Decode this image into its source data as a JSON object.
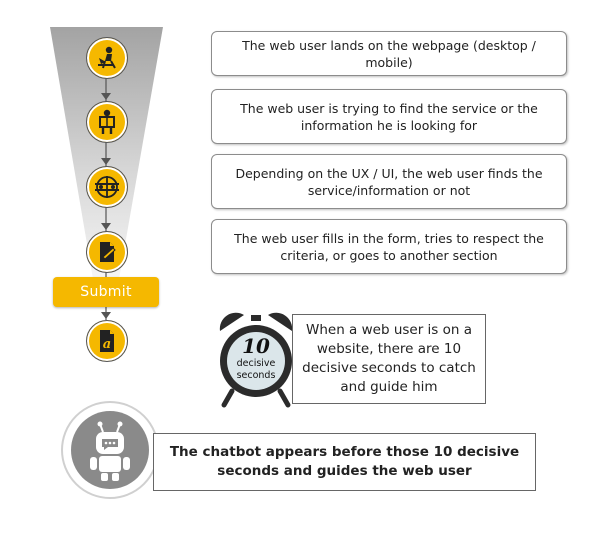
{
  "steps": [
    {
      "text": "The web user lands on the webpage (desktop / mobile)",
      "icon": "user-at-desk-icon"
    },
    {
      "text": "The web user is trying to find the service or the information he is looking for",
      "icon": "user-reading-icon"
    },
    {
      "text": "Depending on the UX / UI, the web user finds the service/information or not",
      "icon": "menu-choice-icon"
    },
    {
      "text": "The web user fills in the form, tries to respect the criteria, or goes to another section",
      "icon": "form-pen-icon"
    }
  ],
  "submit": {
    "label": "Submit"
  },
  "final_icon": "document-a-icon",
  "clock": {
    "number": "10",
    "caption_line1": "decisive",
    "caption_line2": "seconds"
  },
  "note": {
    "text": "When a web user is on a website, there are 10 decisive seconds to catch and guide him"
  },
  "chatbot": {
    "text": "The chatbot appears before those 10 decisive seconds and guides the web user",
    "icon": "chatbot-robot-icon"
  },
  "colors": {
    "accent": "#f5b800",
    "funnel_dark": "#9a9a9a",
    "funnel_light": "#f4f4f4",
    "chat_circle": "#8a8a8a"
  }
}
